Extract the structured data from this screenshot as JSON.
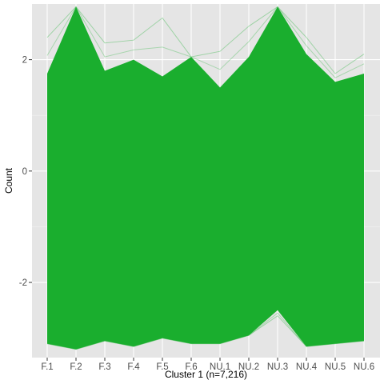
{
  "chart_data": {
    "type": "line",
    "subtype": "parallel-coordinates",
    "x_title": "Cluster 1 (n=7,216)",
    "y_title": "Count",
    "categories": [
      "F.1",
      "F.2",
      "F.3",
      "F.4",
      "F.5",
      "F.6",
      "NU.1",
      "NU.2",
      "NU.3",
      "NU.4",
      "NU.5",
      "NU.6"
    ],
    "ylim": [
      -3.35,
      3.0
    ],
    "yticks": [
      -2,
      0,
      2
    ],
    "ytick_labels": [
      "-2",
      "0",
      "2"
    ],
    "grid": true,
    "legend": "none",
    "envelope_upper": [
      1.75,
      2.95,
      1.8,
      2.0,
      1.7,
      2.05,
      1.5,
      2.05,
      2.95,
      2.1,
      1.6,
      1.75
    ],
    "envelope_lower": [
      -3.1,
      -3.2,
      -3.05,
      -3.15,
      -3.0,
      -3.1,
      -3.1,
      -2.95,
      -2.5,
      -3.15,
      -3.1,
      -3.05
    ],
    "outlier_upper": [
      2.4,
      2.95,
      2.3,
      2.35,
      2.75,
      2.05,
      2.15,
      2.6,
      2.95,
      2.4,
      1.75,
      2.1
    ],
    "outlier_lower": [
      -3.1,
      -3.2,
      -3.05,
      -3.15,
      -3.0,
      -3.1,
      -3.1,
      -2.95,
      -2.6,
      -3.15,
      -3.1,
      -3.05
    ],
    "colors": {
      "series": "#1aae2e",
      "panel_bg": "#e5e5e5",
      "grid_major": "#ffffff",
      "grid_minor": "#f2f2f2"
    }
  }
}
